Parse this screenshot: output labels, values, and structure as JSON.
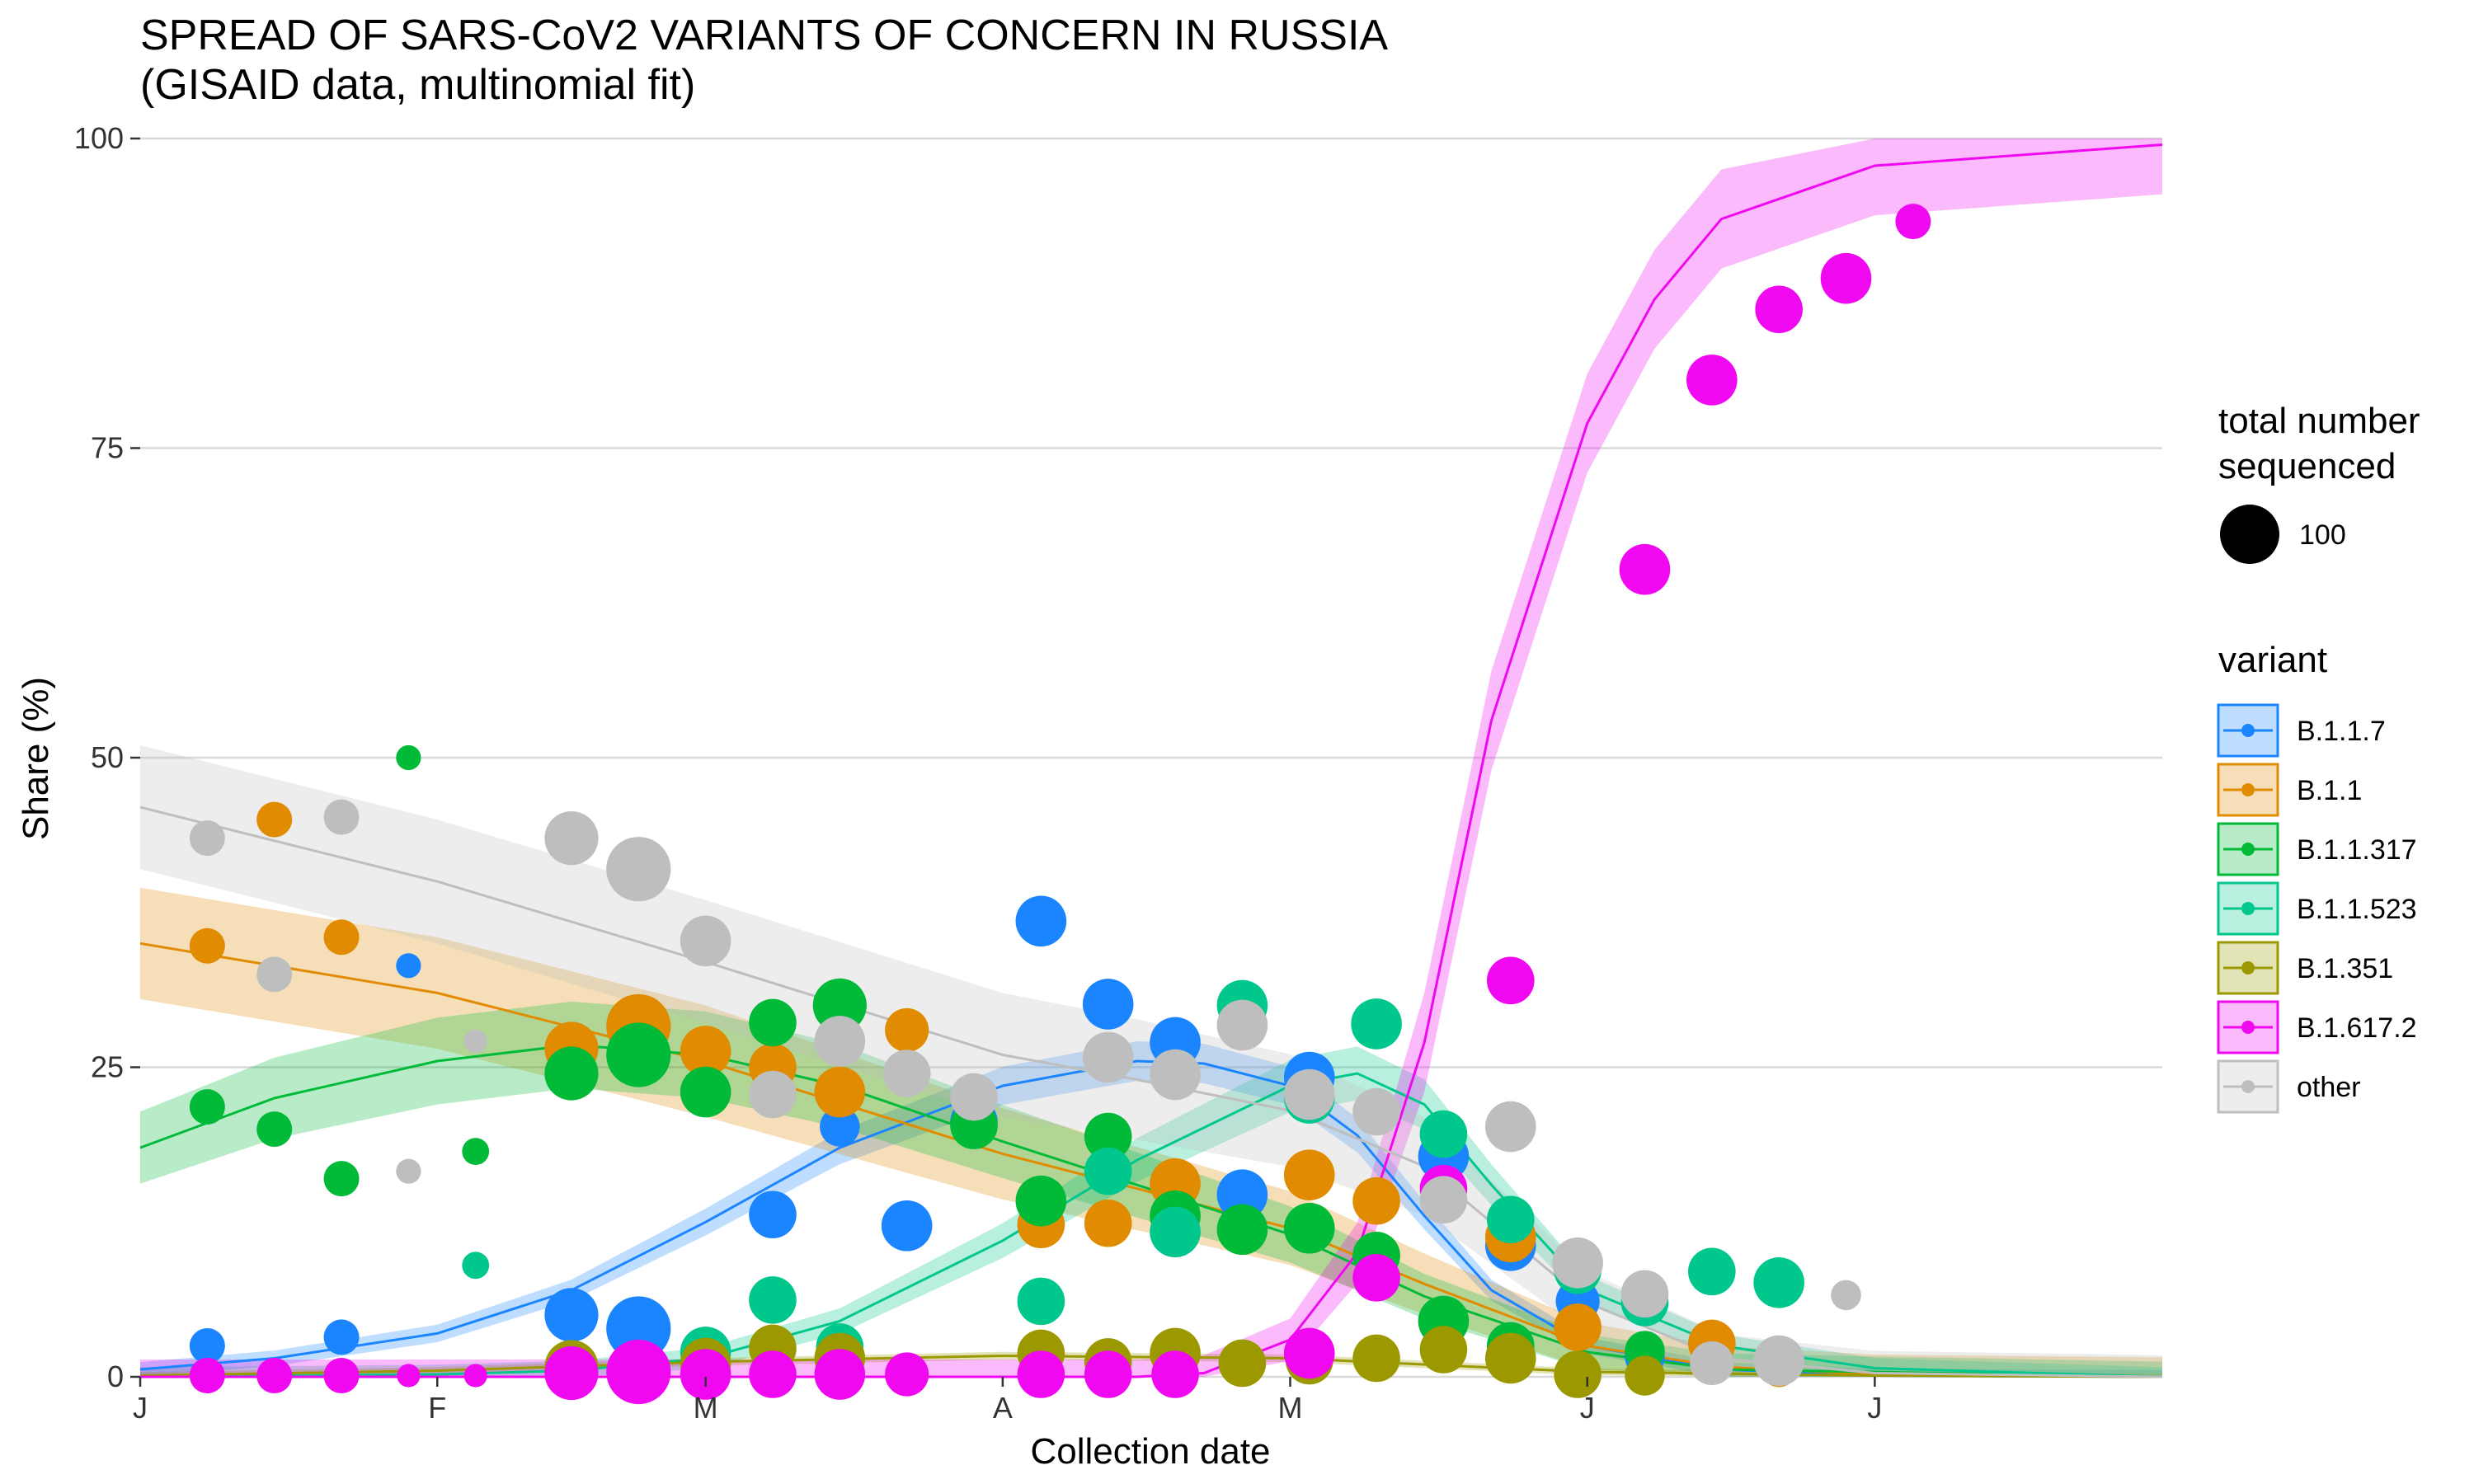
{
  "chart_data": {
    "type": "line",
    "title": "SPREAD OF SARS-CoV2 VARIANTS OF CONCERN IN RUSSIA",
    "subtitle": "(GISAID data, multinomial fit)",
    "xlabel": "Collection date",
    "ylabel": "Share (%)",
    "xlim": [
      "2021-01-01",
      "2021-07-31"
    ],
    "ylim": [
      0,
      100
    ],
    "x_ticks": [
      {
        "date": "2021-01-01",
        "label": "J"
      },
      {
        "date": "2021-02-01",
        "label": "F"
      },
      {
        "date": "2021-03-01",
        "label": "M"
      },
      {
        "date": "2021-04-01",
        "label": "A"
      },
      {
        "date": "2021-05-01",
        "label": "M"
      },
      {
        "date": "2021-06-01",
        "label": "J"
      },
      {
        "date": "2021-07-01",
        "label": "J"
      }
    ],
    "y_ticks": [
      0,
      25,
      50,
      75,
      100
    ],
    "grid": true,
    "legend_position": "right",
    "size_legend": {
      "title": [
        "total number",
        "sequenced"
      ],
      "entries": [
        {
          "label": "100",
          "value": 100
        }
      ]
    },
    "color_legend_title": "variant",
    "series": [
      {
        "name": "B.1.1.7",
        "color": "#1a85ff",
        "fit": [
          [
            "2021-01-01",
            0.6
          ],
          [
            "2021-01-15",
            1.5
          ],
          [
            "2021-02-01",
            3.5
          ],
          [
            "2021-02-15",
            7
          ],
          [
            "2021-03-01",
            12.5
          ],
          [
            "2021-03-15",
            18.5
          ],
          [
            "2021-04-01",
            23.5
          ],
          [
            "2021-04-15",
            25.5
          ],
          [
            "2021-04-22",
            25.3
          ],
          [
            "2021-05-01",
            23.5
          ],
          [
            "2021-05-08",
            19.5
          ],
          [
            "2021-05-15",
            13
          ],
          [
            "2021-05-22",
            7
          ],
          [
            "2021-06-01",
            2.5
          ],
          [
            "2021-06-15",
            0.6
          ],
          [
            "2021-07-01",
            0.1
          ],
          [
            "2021-07-31",
            0
          ]
        ],
        "band": 1.6,
        "points": [
          [
            "2021-01-08",
            2.5,
            30
          ],
          [
            "2021-01-22",
            3.2,
            30
          ],
          [
            "2021-02-15",
            5,
            80
          ],
          [
            "2021-02-22",
            3.9,
            120
          ],
          [
            "2021-03-08",
            13.1,
            60
          ],
          [
            "2021-03-15",
            20.2,
            40
          ],
          [
            "2021-03-22",
            12.2,
            70
          ],
          [
            "2021-03-29",
            20.6,
            60
          ],
          [
            "2021-04-05",
            36.8,
            70
          ],
          [
            "2021-04-12",
            30.1,
            70
          ],
          [
            "2021-04-19",
            27,
            70
          ],
          [
            "2021-04-26",
            14.7,
            70
          ],
          [
            "2021-05-03",
            24.2,
            70
          ],
          [
            "2021-05-17",
            17.8,
            70
          ],
          [
            "2021-05-24",
            10.6,
            70
          ],
          [
            "2021-05-31",
            6.1,
            50
          ],
          [
            "2021-06-07",
            1.6,
            40
          ],
          [
            "2021-01-29",
            33.2,
            12
          ]
        ]
      },
      {
        "name": "B.1.1",
        "color": "#e08b00",
        "fit": [
          [
            "2021-01-01",
            35
          ],
          [
            "2021-02-01",
            31
          ],
          [
            "2021-03-01",
            25.5
          ],
          [
            "2021-04-01",
            18
          ],
          [
            "2021-04-15",
            15.2
          ],
          [
            "2021-05-01",
            12
          ],
          [
            "2021-05-15",
            7.5
          ],
          [
            "2021-06-01",
            2.5
          ],
          [
            "2021-06-15",
            0.8
          ],
          [
            "2021-07-01",
            0.2
          ],
          [
            "2021-07-31",
            0
          ]
        ],
        "band": 4.5,
        "points": [
          [
            "2021-01-08",
            34.8,
            30
          ],
          [
            "2021-01-15",
            45,
            30
          ],
          [
            "2021-01-22",
            35.5,
            30
          ],
          [
            "2021-02-15",
            26.5,
            80
          ],
          [
            "2021-02-22",
            28.3,
            120
          ],
          [
            "2021-03-01",
            26.3,
            70
          ],
          [
            "2021-03-08",
            25,
            60
          ],
          [
            "2021-03-15",
            23,
            70
          ],
          [
            "2021-03-22",
            28,
            50
          ],
          [
            "2021-04-05",
            12.3,
            60
          ],
          [
            "2021-04-12",
            12.4,
            60
          ],
          [
            "2021-04-19",
            15.6,
            70
          ],
          [
            "2021-05-03",
            16.3,
            70
          ],
          [
            "2021-05-10",
            14.2,
            60
          ],
          [
            "2021-05-24",
            11.3,
            70
          ],
          [
            "2021-05-31",
            4,
            60
          ],
          [
            "2021-06-14",
            2.7,
            60
          ],
          [
            "2021-06-21",
            0.6,
            30
          ]
        ]
      },
      {
        "name": "B.1.1.317",
        "color": "#00ba38",
        "fit": [
          [
            "2021-01-01",
            18.5
          ],
          [
            "2021-01-15",
            22.5
          ],
          [
            "2021-02-01",
            25.5
          ],
          [
            "2021-02-15",
            26.8
          ],
          [
            "2021-03-01",
            26
          ],
          [
            "2021-03-15",
            23.5
          ],
          [
            "2021-04-01",
            19
          ],
          [
            "2021-04-15",
            15.5
          ],
          [
            "2021-05-01",
            11.5
          ],
          [
            "2021-05-15",
            6.5
          ],
          [
            "2021-06-01",
            2
          ],
          [
            "2021-06-15",
            0.6
          ],
          [
            "2021-07-31",
            0
          ]
        ],
        "band": 3.5,
        "points": [
          [
            "2021-01-08",
            21.8,
            30
          ],
          [
            "2021-01-15",
            20,
            30
          ],
          [
            "2021-01-22",
            16,
            30
          ],
          [
            "2021-01-29",
            50,
            12
          ],
          [
            "2021-02-05",
            18.2,
            15
          ],
          [
            "2021-02-15",
            24.5,
            80
          ],
          [
            "2021-02-22",
            26,
            120
          ],
          [
            "2021-03-01",
            23,
            70
          ],
          [
            "2021-03-08",
            28.6,
            60
          ],
          [
            "2021-03-15",
            30,
            80
          ],
          [
            "2021-03-29",
            20.3,
            60
          ],
          [
            "2021-04-05",
            14.2,
            70
          ],
          [
            "2021-04-12",
            19.4,
            60
          ],
          [
            "2021-04-19",
            13,
            70
          ],
          [
            "2021-04-26",
            11.9,
            70
          ],
          [
            "2021-05-03",
            12,
            70
          ],
          [
            "2021-05-10",
            9.8,
            60
          ],
          [
            "2021-05-17",
            4.5,
            70
          ],
          [
            "2021-05-24",
            2.5,
            60
          ],
          [
            "2021-06-07",
            2.1,
            40
          ]
        ]
      },
      {
        "name": "B.1.1.523",
        "color": "#00c78c",
        "fit": [
          [
            "2021-01-01",
            0
          ],
          [
            "2021-02-01",
            0.2
          ],
          [
            "2021-02-15",
            0.5
          ],
          [
            "2021-03-01",
            1.5
          ],
          [
            "2021-03-15",
            4.5
          ],
          [
            "2021-04-01",
            11
          ],
          [
            "2021-04-15",
            17.5
          ],
          [
            "2021-05-01",
            23.5
          ],
          [
            "2021-05-08",
            24.5
          ],
          [
            "2021-05-15",
            22
          ],
          [
            "2021-05-22",
            15.5
          ],
          [
            "2021-06-01",
            7
          ],
          [
            "2021-06-15",
            2.5
          ],
          [
            "2021-07-01",
            0.7
          ],
          [
            "2021-07-31",
            0
          ]
        ],
        "band": 2.2,
        "points": [
          [
            "2021-02-05",
            9,
            15
          ],
          [
            "2021-03-01",
            2,
            70
          ],
          [
            "2021-03-08",
            6.2,
            60
          ],
          [
            "2021-03-15",
            2.4,
            60
          ],
          [
            "2021-04-05",
            6.1,
            60
          ],
          [
            "2021-04-12",
            16.6,
            60
          ],
          [
            "2021-04-19",
            11.7,
            70
          ],
          [
            "2021-04-26",
            30,
            70
          ],
          [
            "2021-05-03",
            22.5,
            70
          ],
          [
            "2021-05-10",
            28.5,
            70
          ],
          [
            "2021-05-17",
            19.6,
            60
          ],
          [
            "2021-05-24",
            12.7,
            60
          ],
          [
            "2021-05-31",
            8.6,
            60
          ],
          [
            "2021-06-07",
            6,
            60
          ],
          [
            "2021-06-14",
            8.5,
            60
          ],
          [
            "2021-06-21",
            7.6,
            70
          ]
        ]
      },
      {
        "name": "B.1.351",
        "color": "#9c9900",
        "fit": [
          [
            "2021-01-01",
            0.1
          ],
          [
            "2021-02-01",
            0.5
          ],
          [
            "2021-03-01",
            1.2
          ],
          [
            "2021-04-01",
            1.7
          ],
          [
            "2021-05-01",
            1.5
          ],
          [
            "2021-05-15",
            1
          ],
          [
            "2021-06-01",
            0.4
          ],
          [
            "2021-07-01",
            0.1
          ],
          [
            "2021-07-31",
            0
          ]
        ],
        "band": 0.8,
        "points": [
          [
            "2021-02-15",
            0.8,
            80
          ],
          [
            "2021-02-22",
            0.5,
            70
          ],
          [
            "2021-03-01",
            1.1,
            70
          ],
          [
            "2021-03-08",
            2.3,
            60
          ],
          [
            "2021-03-15",
            1.5,
            70
          ],
          [
            "2021-04-05",
            1.9,
            60
          ],
          [
            "2021-04-12",
            1.2,
            60
          ],
          [
            "2021-04-19",
            1.9,
            70
          ],
          [
            "2021-04-26",
            1.1,
            60
          ],
          [
            "2021-05-03",
            1.3,
            60
          ],
          [
            "2021-05-10",
            1.5,
            60
          ],
          [
            "2021-05-17",
            2.2,
            60
          ],
          [
            "2021-05-24",
            1.5,
            70
          ],
          [
            "2021-05-31",
            0.2,
            60
          ],
          [
            "2021-06-07",
            0.1,
            40
          ]
        ]
      },
      {
        "name": "B.1.617.2",
        "color": "#f008f0",
        "fit": [
          [
            "2021-01-01",
            0
          ],
          [
            "2021-04-15",
            0
          ],
          [
            "2021-04-22",
            0.3
          ],
          [
            "2021-05-01",
            3
          ],
          [
            "2021-05-08",
            10
          ],
          [
            "2021-05-15",
            27
          ],
          [
            "2021-05-22",
            53
          ],
          [
            "2021-06-01",
            77
          ],
          [
            "2021-06-08",
            87
          ],
          [
            "2021-06-15",
            93.5
          ],
          [
            "2021-07-01",
            97.8
          ],
          [
            "2021-07-31",
            99.5
          ]
        ],
        "band": 4,
        "points": [
          [
            "2021-01-08",
            0.1,
            30
          ],
          [
            "2021-01-15",
            0.1,
            30
          ],
          [
            "2021-01-22",
            0.1,
            30
          ],
          [
            "2021-01-29",
            0.1,
            10
          ],
          [
            "2021-02-05",
            0.1,
            10
          ],
          [
            "2021-02-15",
            0.3,
            80
          ],
          [
            "2021-02-22",
            0.4,
            120
          ],
          [
            "2021-03-01",
            0.2,
            70
          ],
          [
            "2021-03-08",
            0.2,
            60
          ],
          [
            "2021-03-15",
            0.2,
            70
          ],
          [
            "2021-03-22",
            0.2,
            50
          ],
          [
            "2021-04-05",
            0.2,
            60
          ],
          [
            "2021-04-12",
            0.2,
            60
          ],
          [
            "2021-04-19",
            0.2,
            60
          ],
          [
            "2021-05-03",
            1.9,
            70
          ],
          [
            "2021-05-10",
            8,
            60
          ],
          [
            "2021-05-17",
            15.2,
            60
          ],
          [
            "2021-05-24",
            32,
            60
          ],
          [
            "2021-06-07",
            65.2,
            70
          ],
          [
            "2021-06-14",
            80.5,
            70
          ],
          [
            "2021-06-21",
            86.2,
            60
          ],
          [
            "2021-06-28",
            88.7,
            70
          ],
          [
            "2021-07-05",
            93.3,
            30
          ]
        ]
      },
      {
        "name": "other",
        "color": "#bebebe",
        "fit": [
          [
            "2021-01-01",
            46
          ],
          [
            "2021-02-01",
            40
          ],
          [
            "2021-03-01",
            33.5
          ],
          [
            "2021-04-01",
            26
          ],
          [
            "2021-04-15",
            24
          ],
          [
            "2021-05-01",
            21.5
          ],
          [
            "2021-05-15",
            17
          ],
          [
            "2021-06-01",
            6
          ],
          [
            "2021-06-15",
            1.5
          ],
          [
            "2021-07-01",
            0.3
          ],
          [
            "2021-07-31",
            0
          ]
        ],
        "band": 5,
        "points": [
          [
            "2021-01-08",
            43.5,
            30
          ],
          [
            "2021-01-15",
            32.5,
            30
          ],
          [
            "2021-01-22",
            45.2,
            30
          ],
          [
            "2021-01-29",
            16.6,
            12
          ],
          [
            "2021-02-05",
            27.1,
            10
          ],
          [
            "2021-02-15",
            43.5,
            80
          ],
          [
            "2021-02-22",
            41,
            120
          ],
          [
            "2021-03-01",
            35.2,
            70
          ],
          [
            "2021-03-08",
            22.8,
            60
          ],
          [
            "2021-03-15",
            27.1,
            70
          ],
          [
            "2021-03-22",
            24.5,
            60
          ],
          [
            "2021-03-29",
            22.6,
            60
          ],
          [
            "2021-04-12",
            25.8,
            70
          ],
          [
            "2021-04-19",
            24.4,
            70
          ],
          [
            "2021-04-26",
            28.4,
            70
          ],
          [
            "2021-05-03",
            22.8,
            70
          ],
          [
            "2021-05-10",
            21.4,
            60
          ],
          [
            "2021-05-17",
            14.3,
            60
          ],
          [
            "2021-05-24",
            20.2,
            70
          ],
          [
            "2021-05-31",
            9.2,
            70
          ],
          [
            "2021-06-07",
            6.7,
            60
          ],
          [
            "2021-06-14",
            1.1,
            50
          ],
          [
            "2021-06-21",
            1.3,
            70
          ],
          [
            "2021-06-28",
            6.6,
            20
          ]
        ]
      }
    ]
  }
}
